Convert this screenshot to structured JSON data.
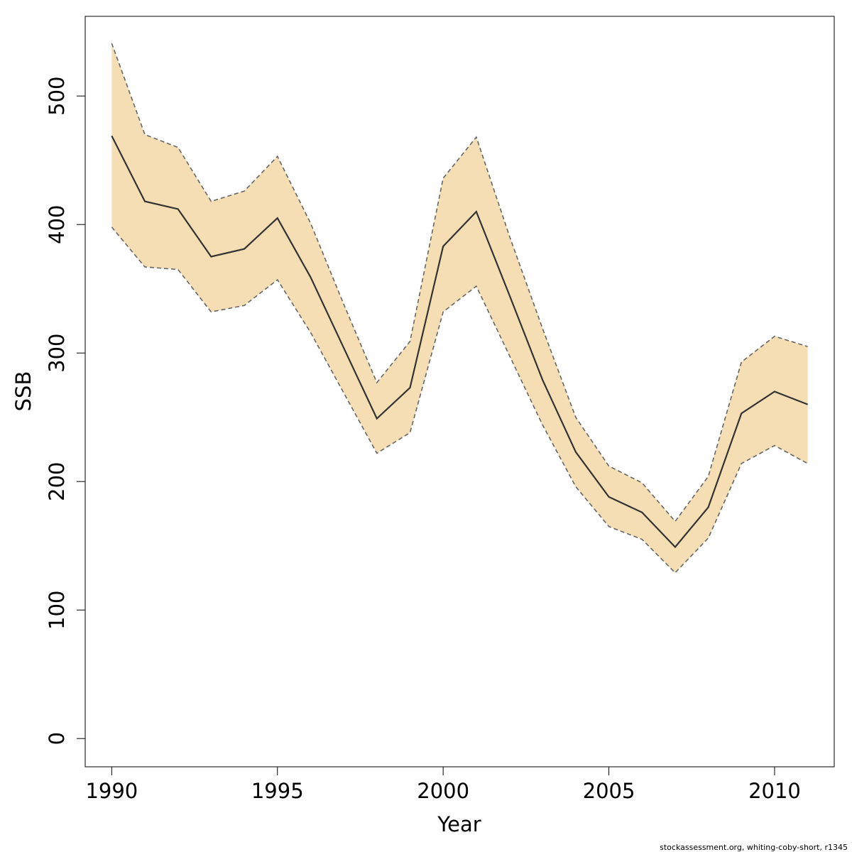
{
  "chart_data": {
    "type": "area",
    "xlabel": "Year",
    "ylabel": "SSB",
    "xlim": [
      1989.2,
      2011.8
    ],
    "ylim": [
      -22,
      562
    ],
    "x_ticks": [
      1990,
      1995,
      2000,
      2005,
      2010
    ],
    "y_ticks": [
      0,
      100,
      200,
      300,
      400,
      500
    ],
    "grid": false,
    "legend": "none",
    "x": [
      1990,
      1991,
      1992,
      1993,
      1994,
      1995,
      1996,
      1997,
      1998,
      1999,
      2000,
      2001,
      2002,
      2003,
      2004,
      2005,
      2006,
      2007,
      2008,
      2009,
      2010,
      2011
    ],
    "series": [
      {
        "role": "estimate",
        "values": [
          469,
          418,
          412,
          375,
          381,
          405,
          359,
          304,
          249,
          273,
          383,
          410,
          345,
          279,
          223,
          188,
          176,
          149,
          180,
          253,
          270,
          260
        ]
      },
      {
        "role": "upper",
        "values": [
          541,
          470,
          460,
          418,
          426,
          453,
          401,
          338,
          277,
          309,
          436,
          468,
          391,
          319,
          250,
          212,
          199,
          169,
          204,
          293,
          313,
          305
        ]
      },
      {
        "role": "lower",
        "values": [
          398,
          367,
          365,
          332,
          337,
          357,
          316,
          269,
          222,
          238,
          332,
          352,
          298,
          244,
          196,
          165,
          155,
          129,
          156,
          214,
          228,
          214
        ]
      }
    ],
    "colors": {
      "band": "#F5DEB3",
      "bound_line": "#666666",
      "estimate_line": "#333333",
      "axis": "#000000"
    }
  },
  "footer": "stockassessment.org, whiting-coby-short, r1345"
}
